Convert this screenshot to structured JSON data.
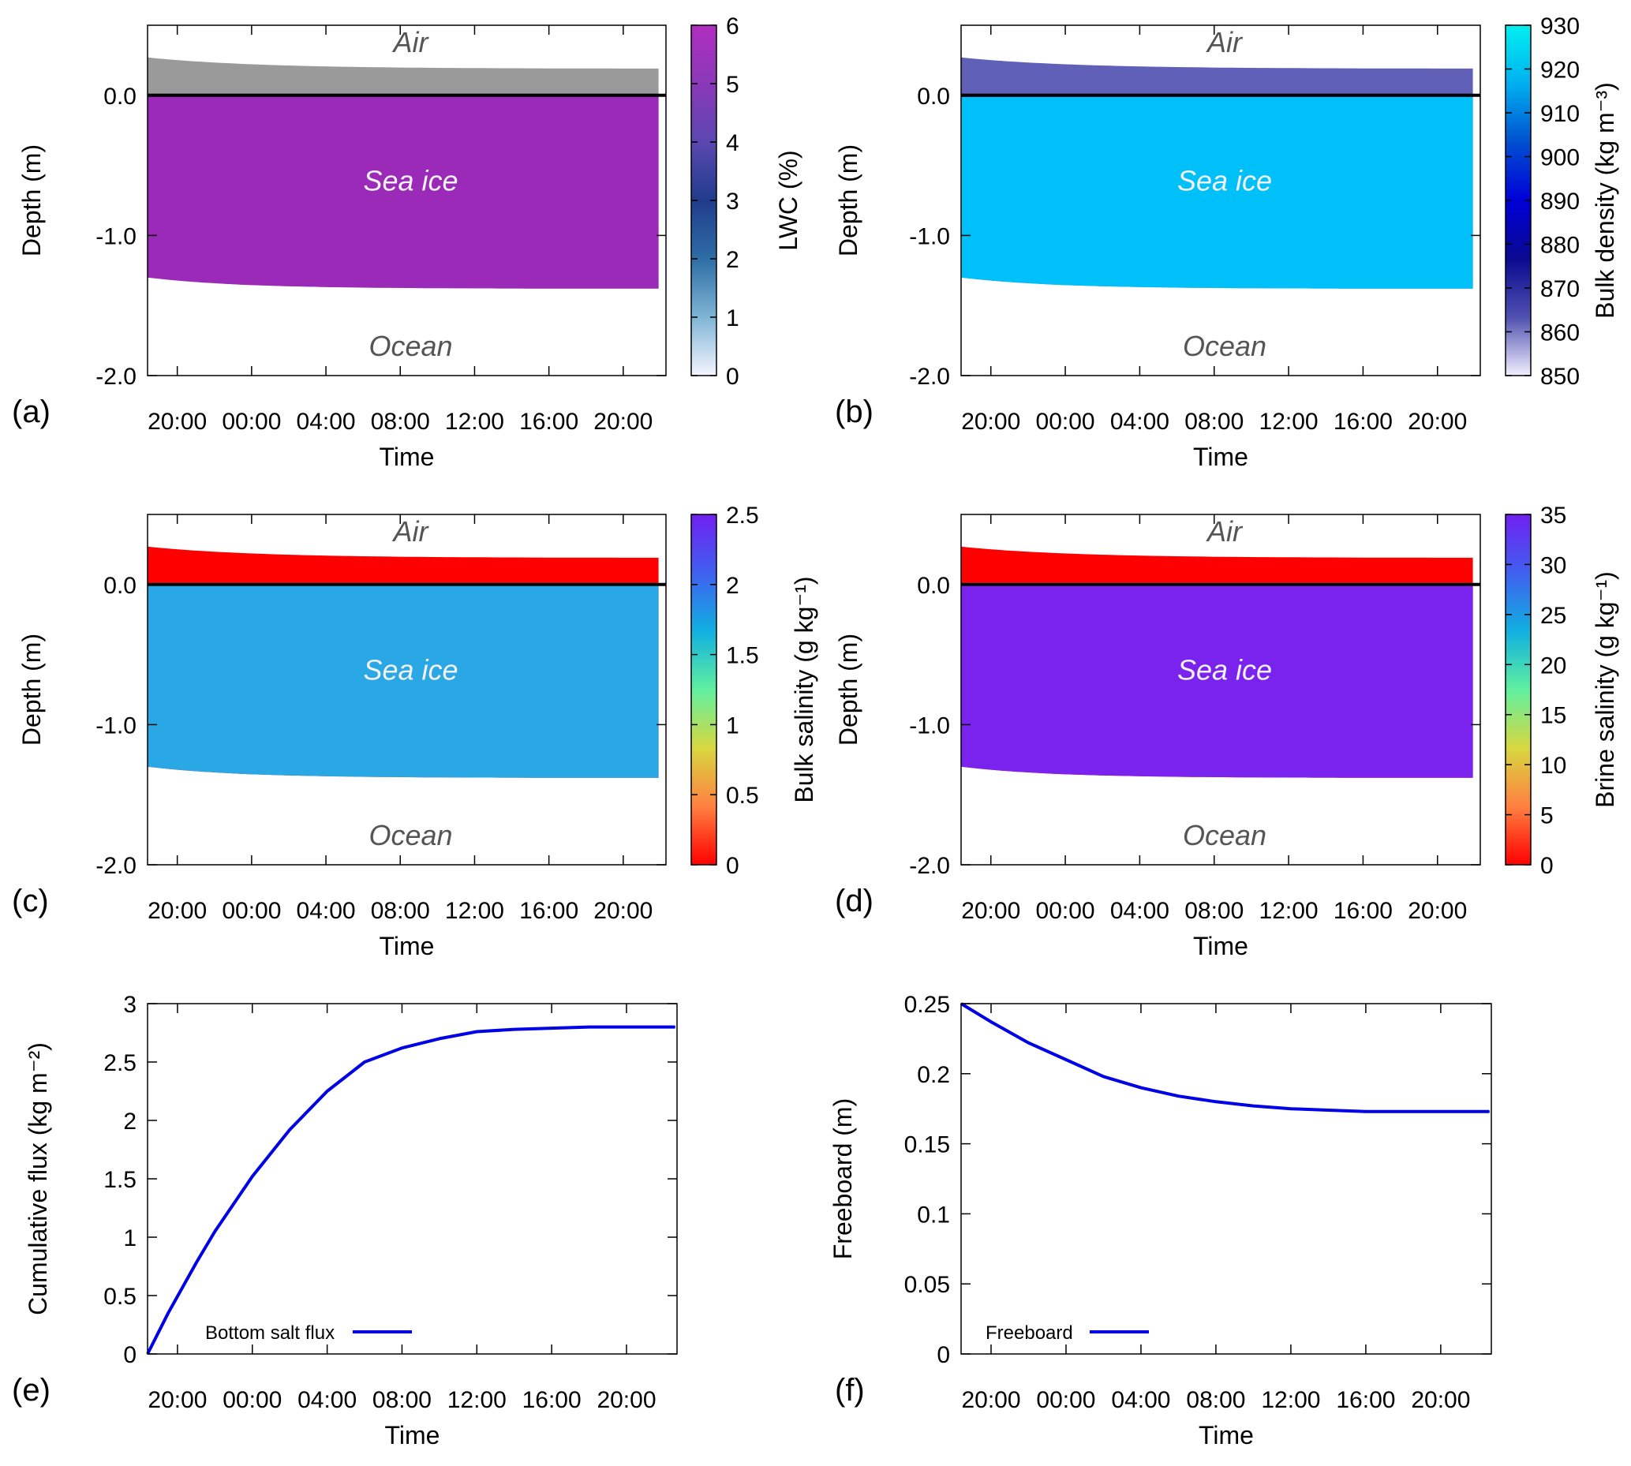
{
  "figure": {
    "time_ticks": [
      "20:00",
      "00:00",
      "04:00",
      "08:00",
      "12:00",
      "16:00",
      "20:00"
    ],
    "time_label": "Time",
    "regions": {
      "air": "Air",
      "sea_ice": "Sea ice",
      "ocean": "Ocean"
    }
  },
  "chart_data": [
    {
      "id": "a",
      "panel_label": "(a)",
      "type": "heatmap",
      "xlabel": "Time",
      "ylabel": "Depth (m)",
      "xlim_hours": [
        -1.6,
        26.3
      ],
      "ylim": [
        -2.0,
        0.5
      ],
      "yticks": [
        "0.0",
        "-1.0",
        "-2.0"
      ],
      "ytick_values": [
        0.0,
        -1.0,
        -2.0
      ],
      "colorbar_label": "LWC (%)",
      "colorbar_range": [
        0,
        6
      ],
      "colorbar_ticks": [
        "0",
        "1",
        "2",
        "3",
        "4",
        "5",
        "6"
      ],
      "colorbar_tick_values": [
        0,
        1,
        2,
        3,
        4,
        5,
        6
      ],
      "colormap": [
        "#f5f5ff",
        "#7fb5d5",
        "#2e6ea6",
        "#203c8c",
        "#5a48b0",
        "#8a38b8",
        "#b02ec0"
      ],
      "fill_colors": {
        "above_freeboard": "#9a9a9a",
        "sea_ice": "#9b2ab8"
      }
    },
    {
      "id": "b",
      "panel_label": "(b)",
      "type": "heatmap",
      "xlabel": "Time",
      "ylabel": "Depth (m)",
      "xlim_hours": [
        -1.6,
        26.3
      ],
      "ylim": [
        -2.0,
        0.5
      ],
      "yticks": [
        "0.0",
        "-1.0",
        "-2.0"
      ],
      "ytick_values": [
        0.0,
        -1.0,
        -2.0
      ],
      "colorbar_label": "Bulk density (kg m⁻³)",
      "colorbar_range": [
        850,
        930
      ],
      "colorbar_ticks": [
        "850",
        "860",
        "870",
        "880",
        "890",
        "900",
        "910",
        "920",
        "930"
      ],
      "colorbar_tick_values": [
        850,
        860,
        870,
        880,
        890,
        900,
        910,
        920,
        930
      ],
      "colormap": [
        "#f0f0ff",
        "#5050b0",
        "#0a0a90",
        "#0000d8",
        "#0050d0",
        "#00b0f0",
        "#00f0f0"
      ],
      "fill_colors": {
        "above_freeboard": "#6060b8",
        "sea_ice": "#00c0fa"
      }
    },
    {
      "id": "c",
      "panel_label": "(c)",
      "type": "heatmap",
      "xlabel": "Time",
      "ylabel": "Depth (m)",
      "xlim_hours": [
        -1.6,
        26.3
      ],
      "ylim": [
        -2.0,
        0.5
      ],
      "yticks": [
        "0.0",
        "-1.0",
        "-2.0"
      ],
      "ytick_values": [
        0.0,
        -1.0,
        -2.0
      ],
      "colorbar_label": "Bulk salinity (g kg⁻¹)",
      "colorbar_range": [
        0,
        2.5
      ],
      "colorbar_ticks": [
        "0",
        "0.5",
        "1",
        "1.5",
        "2",
        "2.5"
      ],
      "colorbar_tick_values": [
        0,
        0.5,
        1,
        1.5,
        2,
        2.5
      ],
      "colormap": [
        "#ff0000",
        "#ff8040",
        "#d8d840",
        "#60f0a0",
        "#10b0e0",
        "#4060f0",
        "#7020f0"
      ],
      "fill_colors": {
        "above_freeboard": "#ff0000",
        "sea_ice": "#2aa8e6"
      }
    },
    {
      "id": "d",
      "panel_label": "(d)",
      "type": "heatmap",
      "xlabel": "Time",
      "ylabel": "Depth (m)",
      "xlim_hours": [
        -1.6,
        26.3
      ],
      "ylim": [
        -2.0,
        0.5
      ],
      "yticks": [
        "0.0",
        "-1.0",
        "-2.0"
      ],
      "ytick_values": [
        0.0,
        -1.0,
        -2.0
      ],
      "colorbar_label": "Brine salinity (g kg⁻¹)",
      "colorbar_range": [
        0,
        35
      ],
      "colorbar_ticks": [
        "0",
        "5",
        "10",
        "15",
        "20",
        "25",
        "30",
        "35"
      ],
      "colorbar_tick_values": [
        0,
        5,
        10,
        15,
        20,
        25,
        30,
        35
      ],
      "colormap": [
        "#ff0000",
        "#ff8040",
        "#d8d840",
        "#60f0a0",
        "#10b0e0",
        "#4060f0",
        "#7020f0"
      ],
      "fill_colors": {
        "above_freeboard": "#ff0000",
        "sea_ice": "#7a22ee"
      }
    },
    {
      "id": "e",
      "panel_label": "(e)",
      "type": "line",
      "xlabel": "Time",
      "ylabel": "Cumulative flux (kg m⁻²)",
      "xlim_hours": [
        -1.6,
        26.7
      ],
      "ylim": [
        0,
        3
      ],
      "yticks": [
        "0",
        "0.5",
        "1",
        "1.5",
        "2",
        "2.5",
        "3"
      ],
      "ytick_values": [
        0,
        0.5,
        1,
        1.5,
        2,
        2.5,
        3
      ],
      "series": [
        {
          "name": "Bottom salt flux",
          "color": "#0000e6",
          "x_hours": [
            -1.6,
            -0.5,
            1,
            2,
            4,
            6,
            8,
            10,
            12,
            14,
            16,
            18,
            20,
            22,
            24,
            26.6
          ],
          "values": [
            0.0,
            0.35,
            0.78,
            1.05,
            1.52,
            1.92,
            2.25,
            2.5,
            2.62,
            2.7,
            2.76,
            2.78,
            2.79,
            2.8,
            2.8,
            2.8
          ]
        }
      ]
    },
    {
      "id": "f",
      "panel_label": "(f)",
      "type": "line",
      "xlabel": "Time",
      "ylabel": "Freeboard (m)",
      "xlim_hours": [
        -1.6,
        26.7
      ],
      "ylim": [
        0,
        0.25
      ],
      "yticks": [
        "0",
        "0.05",
        "0.1",
        "0.15",
        "0.2",
        "0.25"
      ],
      "ytick_values": [
        0,
        0.05,
        0.1,
        0.15,
        0.2,
        0.25
      ],
      "series": [
        {
          "name": "Freeboard",
          "color": "#0000e6",
          "x_hours": [
            -1.6,
            0,
            2,
            4,
            6,
            8,
            10,
            12,
            14,
            16,
            18,
            20,
            22,
            24,
            26.6
          ],
          "values": [
            0.25,
            0.237,
            0.222,
            0.21,
            0.198,
            0.19,
            0.184,
            0.18,
            0.177,
            0.175,
            0.174,
            0.173,
            0.173,
            0.173,
            0.173
          ]
        }
      ]
    }
  ]
}
